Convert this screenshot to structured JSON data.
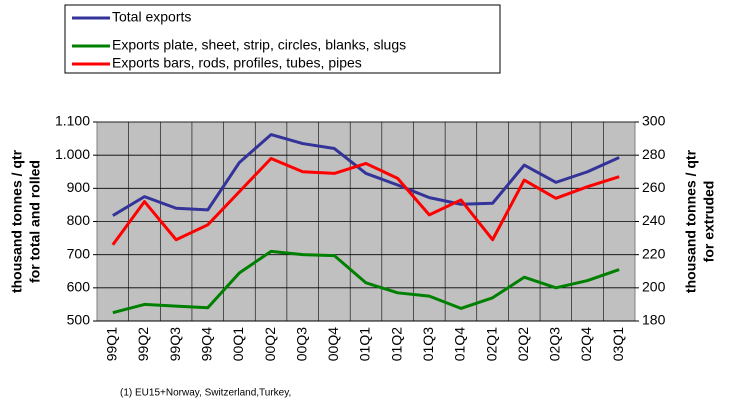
{
  "chart_data": {
    "type": "line",
    "categories": [
      "99Q1",
      "99Q2",
      "99Q3",
      "99Q4",
      "00Q1",
      "00Q2",
      "00Q3",
      "00Q4",
      "01Q1",
      "01Q2",
      "01Q3",
      "01Q4",
      "02Q1",
      "02Q2",
      "02Q3",
      "02Q4",
      "03Q1"
    ],
    "series": [
      {
        "name": "Total exports",
        "color": "#333399",
        "values": [
          818,
          875,
          840,
          835,
          978,
          1062,
          1035,
          1020,
          945,
          910,
          872,
          852,
          855,
          970,
          918,
          950,
          993
        ]
      },
      {
        "name": "Exports plate, sheet, strip, circles, blanks, slugs",
        "color": "#008000",
        "values": [
          525,
          550,
          545,
          540,
          645,
          710,
          700,
          697,
          615,
          585,
          575,
          538,
          570,
          632,
          600,
          622,
          655
        ]
      },
      {
        "name": "Exports bars, rods, profiles, tubes, pipes",
        "color": "#ff0000",
        "axis": "y2",
        "values": [
          226,
          252,
          229,
          238,
          258,
          278,
          270,
          269,
          275,
          266,
          244,
          253,
          229,
          265,
          254,
          261,
          267
        ]
      }
    ],
    "ylabel": [
      "thousand tonnes / qtr",
      "for total and rolled"
    ],
    "y2label": [
      "thousand tonnes / qtr",
      "for extruded"
    ],
    "ylim": [
      500,
      1100
    ],
    "yticks": [
      500,
      600,
      700,
      800,
      900,
      {
        "value": 1000,
        "label": "1.000"
      },
      {
        "value": 1100,
        "label": "1.100"
      }
    ],
    "y2lim": [
      180,
      300
    ],
    "y2ticks": [
      180,
      200,
      220,
      240,
      260,
      280,
      300
    ],
    "grid": true,
    "footnote": "(1) EU15+Norway, Switzerland,Turkey,"
  }
}
